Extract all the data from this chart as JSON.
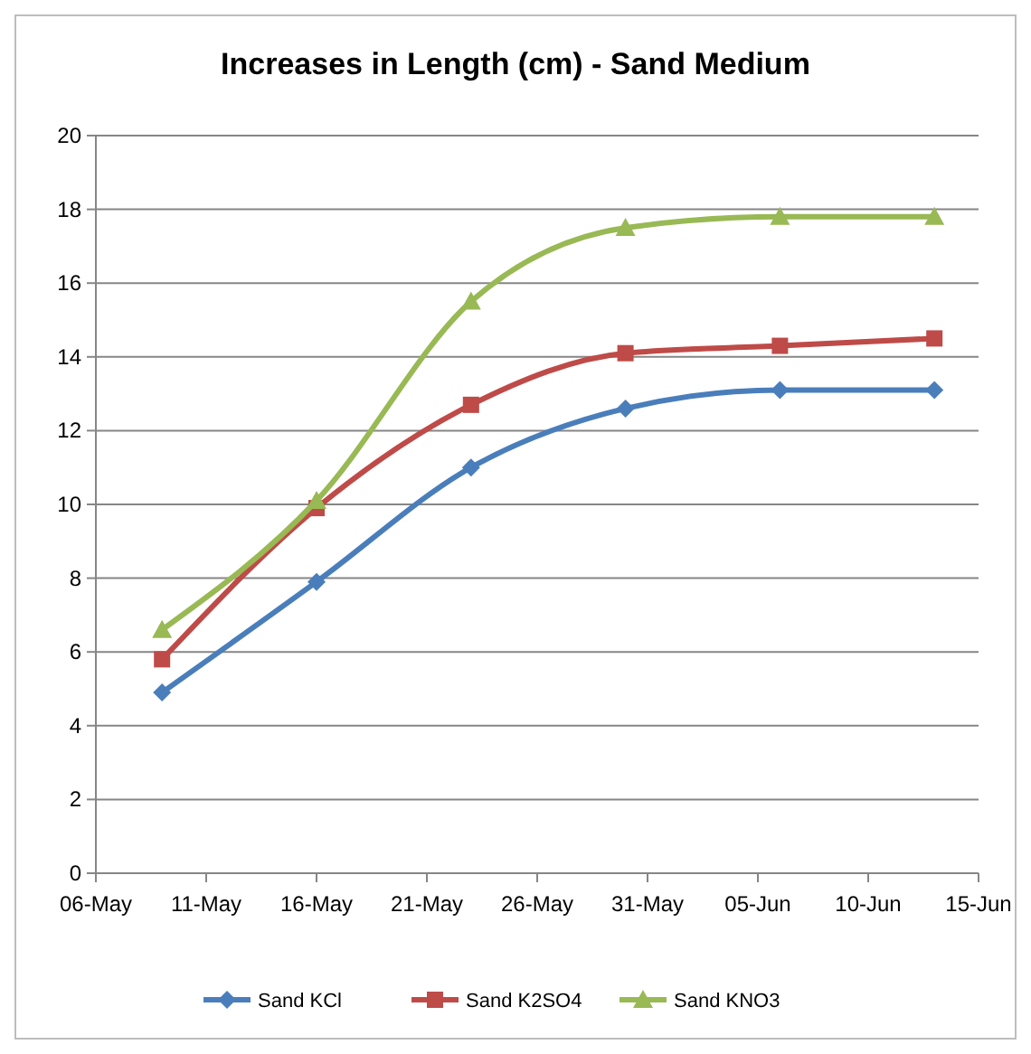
{
  "chart_data": {
    "type": "line",
    "title": "Increases in Length (cm) - Sand Medium",
    "x": [
      "--05-09",
      "--05-16",
      "--05-23",
      "--05-30",
      "--06-06",
      "--06-13"
    ],
    "series": [
      {
        "name": "Sand KCl",
        "color": "#4a7ebb",
        "marker": "diamond",
        "values": [
          4.9,
          7.9,
          11.0,
          12.6,
          13.1,
          13.1
        ]
      },
      {
        "name": "Sand K2SO4",
        "color": "#be4b48",
        "marker": "square",
        "values": [
          5.8,
          9.9,
          12.7,
          14.1,
          14.3,
          14.5
        ]
      },
      {
        "name": "Sand KNO3",
        "color": "#98b954",
        "marker": "triangle",
        "values": [
          6.6,
          10.1,
          15.5,
          17.5,
          17.8,
          17.8
        ]
      }
    ],
    "xlim": [
      "--05-06",
      "--06-15"
    ],
    "xticks": [
      {
        "value": "--05-06",
        "label": "06-May"
      },
      {
        "value": "--05-11",
        "label": "11-May"
      },
      {
        "value": "--05-16",
        "label": "16-May"
      },
      {
        "value": "--05-21",
        "label": "21-May"
      },
      {
        "value": "--05-26",
        "label": "26-May"
      },
      {
        "value": "--05-31",
        "label": "31-May"
      },
      {
        "value": "--06-05",
        "label": "05-Jun"
      },
      {
        "value": "--06-10",
        "label": "10-Jun"
      },
      {
        "value": "--06-15",
        "label": "15-Jun"
      }
    ],
    "ylim": [
      0,
      20
    ],
    "yticks": [
      0,
      2,
      4,
      6,
      8,
      10,
      12,
      14,
      16,
      18,
      20
    ],
    "grid": "y",
    "legend": "bottom",
    "line_style": "solid"
  }
}
